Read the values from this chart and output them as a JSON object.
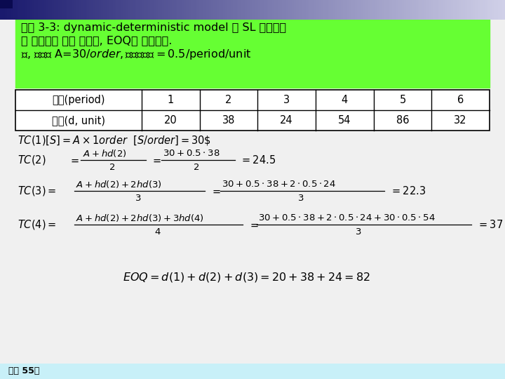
{
  "bg_color": "#f0f0f0",
  "header_bg": "#66ff33",
  "footer_bg": "#c8f0f8",
  "footer_text": "교재 55쪽",
  "title_line1": "예제 3-3: dynamic-deterministic model 과 SL 경험법칙",
  "title_line2": "을 이용하여 최적 주문량, EOQ를 구하시오.",
  "title_line3": "단, 주문비 A=30$/order, 재고유지비=0.5$/period/unit",
  "table_col1_header": "구간(period)",
  "table_col1_data": "수요(d, unit)",
  "table_periods": [
    "1",
    "2",
    "3",
    "4",
    "5",
    "6"
  ],
  "table_demands": [
    "20",
    "38",
    "24",
    "54",
    "86",
    "32"
  ],
  "top_bar_left": "#1a1a6e",
  "top_bar_right": "#d0d0e8"
}
